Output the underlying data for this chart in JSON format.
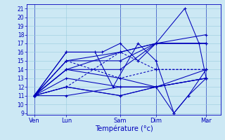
{
  "title": "Température (°c)",
  "ylabel_ticks": [
    9,
    10,
    11,
    12,
    13,
    14,
    15,
    16,
    17,
    18,
    19,
    20,
    21
  ],
  "ylim": [
    8.8,
    21.5
  ],
  "xlim": [
    0,
    108
  ],
  "background_color": "#cce8f4",
  "grid_color": "#99ccdd",
  "line_color": "#0000bb",
  "x_tick_pos": [
    4,
    22,
    52,
    72,
    100
  ],
  "x_labels": [
    "Ven",
    "Lun",
    "Sam",
    "Dim",
    "Mar"
  ],
  "x_vlines": [
    4,
    52,
    72,
    100
  ],
  "lines": [
    [
      4,
      11,
      22,
      11,
      52,
      12,
      72,
      12,
      100,
      13
    ],
    [
      4,
      11,
      22,
      12,
      52,
      11,
      72,
      12,
      100,
      14
    ],
    [
      4,
      11,
      22,
      13,
      52,
      12,
      72,
      12,
      100,
      13
    ],
    [
      4,
      11,
      22,
      14,
      52,
      13,
      72,
      12,
      100,
      13
    ],
    [
      4,
      11,
      22,
      14,
      52,
      14,
      72,
      17,
      100,
      17
    ],
    [
      4,
      11,
      22,
      14,
      52,
      16,
      72,
      17,
      100,
      17
    ],
    [
      4,
      11,
      22,
      15,
      52,
      16,
      72,
      17,
      100,
      17
    ],
    [
      4,
      11,
      22,
      15,
      52,
      15,
      72,
      17,
      100,
      18
    ],
    [
      4,
      11,
      22,
      16,
      42,
      16,
      52,
      17,
      62,
      15,
      72,
      17,
      88,
      21,
      96,
      17,
      100,
      13
    ],
    [
      4,
      11,
      22,
      16,
      38,
      16,
      48,
      12,
      62,
      17,
      72,
      15,
      82,
      9,
      90,
      11,
      100,
      13
    ],
    [
      4,
      11,
      22,
      12,
      52,
      11,
      72,
      12,
      82,
      9,
      90,
      11,
      100,
      14
    ]
  ],
  "dashed_lines": [
    [
      4,
      11,
      22,
      12,
      52,
      16,
      72,
      14,
      100,
      14
    ],
    [
      4,
      11,
      22,
      15,
      52,
      13,
      72,
      14,
      100,
      14
    ]
  ]
}
